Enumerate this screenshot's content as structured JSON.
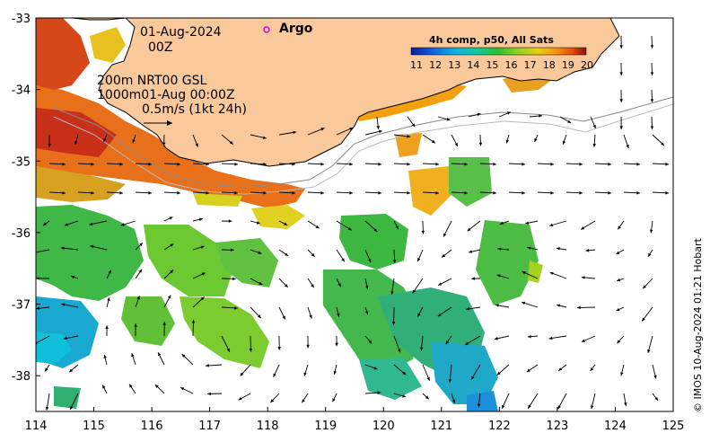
{
  "map": {
    "date_label": "01-Aug-2024",
    "time_label": "00Z",
    "legend_nrt": "200m  NRT00 GSL",
    "legend_isobath": "1000m01-Aug 00:00Z",
    "legend_speed": "0.5m/s (1kt 24h)",
    "argo_label": "Argo",
    "colorbar_title": "4h comp, p50, All Sats",
    "colorbar_ticks": [
      "11",
      "12",
      "13",
      "14",
      "15",
      "16",
      "17",
      "18",
      "19",
      "20"
    ],
    "credit": "© IMOS 10-Aug-2024 01:21 Hobart",
    "x_ticks": [
      "114",
      "115",
      "116",
      "117",
      "118",
      "119",
      "120",
      "121",
      "122",
      "123",
      "124",
      "125"
    ],
    "y_ticks": [
      "-33",
      "-34",
      "-35",
      "-36",
      "-37",
      "-38"
    ],
    "lon_range": [
      114,
      125
    ],
    "lat_range": [
      -38.5,
      -33
    ],
    "colors": {
      "land": "#f9c89b",
      "argo_marker": "#e000e0",
      "frame": "#000000"
    }
  }
}
